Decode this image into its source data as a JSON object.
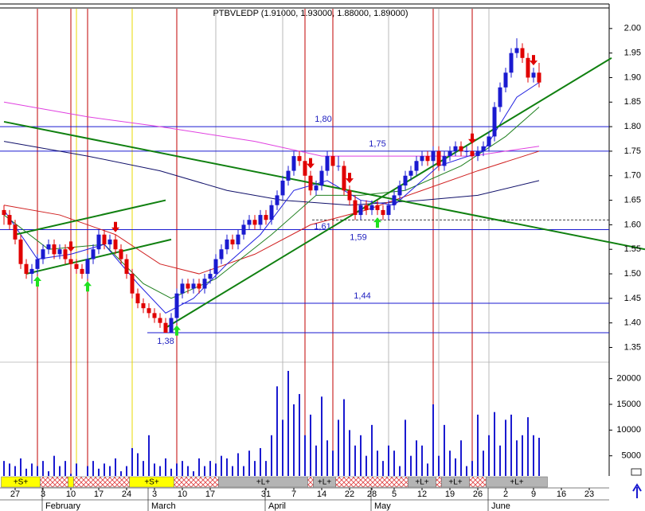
{
  "chart_data": {
    "type": "candlestick",
    "title": "PTBVLEDP (1.91000, 1.93000, 1.88000, 1.89000)",
    "up_color": "#1a1ad0",
    "down_color": "#e00000",
    "categories": [
      null,
      null,
      "27",
      null,
      null,
      null,
      null,
      "3",
      null,
      null,
      null,
      null,
      "10",
      null,
      null,
      null,
      null,
      "17",
      null,
      null,
      null,
      null,
      "24",
      null,
      null,
      null,
      null,
      "3",
      null,
      null,
      null,
      null,
      "10",
      null,
      null,
      null,
      null,
      "17",
      null,
      null,
      null,
      null,
      null,
      null,
      null,
      null,
      null,
      "31",
      null,
      null,
      null,
      null,
      "7",
      null,
      null,
      null,
      null,
      "14",
      null,
      null,
      null,
      null,
      "22",
      null,
      null,
      null,
      "28",
      null,
      null,
      null,
      "5",
      null,
      null,
      null,
      null,
      "12",
      null,
      null,
      null,
      null,
      "19",
      null,
      null,
      null,
      null,
      "26",
      null,
      null,
      null,
      null,
      "2",
      null,
      null,
      null,
      null,
      "9",
      null,
      null,
      null,
      null,
      "16",
      null,
      null,
      null,
      null,
      "23",
      null
    ],
    "months": [
      {
        "label": "February",
        "index": 10
      },
      {
        "label": "March",
        "index": 29
      },
      {
        "label": "April",
        "index": 50
      },
      {
        "label": "May",
        "index": 69
      },
      {
        "label": "June",
        "index": 90
      }
    ],
    "ohlc": [
      [
        1.63,
        1.64,
        1.6,
        1.62
      ],
      [
        1.62,
        1.63,
        1.59,
        1.6
      ],
      [
        1.6,
        1.61,
        1.56,
        1.57
      ],
      [
        1.57,
        1.58,
        1.51,
        1.52
      ],
      [
        1.52,
        1.53,
        1.49,
        1.5
      ],
      [
        1.5,
        1.52,
        1.48,
        1.51
      ],
      [
        1.51,
        1.54,
        1.5,
        1.53
      ],
      [
        1.53,
        1.56,
        1.52,
        1.55
      ],
      [
        1.55,
        1.57,
        1.54,
        1.56
      ],
      [
        1.56,
        1.57,
        1.53,
        1.54
      ],
      [
        1.54,
        1.56,
        1.53,
        1.55
      ],
      [
        1.55,
        1.56,
        1.52,
        1.53
      ],
      [
        1.53,
        1.54,
        1.51,
        1.52
      ],
      [
        1.52,
        1.53,
        1.5,
        1.51
      ],
      [
        1.51,
        1.52,
        1.49,
        1.5
      ],
      [
        1.5,
        1.54,
        1.49,
        1.53
      ],
      [
        1.53,
        1.56,
        1.52,
        1.55
      ],
      [
        1.55,
        1.59,
        1.54,
        1.58
      ],
      [
        1.58,
        1.59,
        1.55,
        1.56
      ],
      [
        1.56,
        1.58,
        1.55,
        1.57
      ],
      [
        1.57,
        1.58,
        1.54,
        1.55
      ],
      [
        1.55,
        1.56,
        1.52,
        1.53
      ],
      [
        1.53,
        1.54,
        1.49,
        1.5
      ],
      [
        1.5,
        1.51,
        1.45,
        1.46
      ],
      [
        1.46,
        1.47,
        1.43,
        1.44
      ],
      [
        1.44,
        1.45,
        1.42,
        1.43
      ],
      [
        1.43,
        1.44,
        1.41,
        1.42
      ],
      [
        1.42,
        1.43,
        1.4,
        1.41
      ],
      [
        1.41,
        1.42,
        1.39,
        1.4
      ],
      [
        1.4,
        1.41,
        1.38,
        1.38
      ],
      [
        1.38,
        1.42,
        1.38,
        1.41
      ],
      [
        1.41,
        1.47,
        1.4,
        1.46
      ],
      [
        1.46,
        1.49,
        1.45,
        1.48
      ],
      [
        1.48,
        1.49,
        1.46,
        1.47
      ],
      [
        1.47,
        1.49,
        1.46,
        1.48
      ],
      [
        1.48,
        1.49,
        1.46,
        1.47
      ],
      [
        1.47,
        1.5,
        1.46,
        1.49
      ],
      [
        1.49,
        1.51,
        1.48,
        1.5
      ],
      [
        1.5,
        1.54,
        1.49,
        1.53
      ],
      [
        1.53,
        1.56,
        1.52,
        1.55
      ],
      [
        1.55,
        1.58,
        1.54,
        1.57
      ],
      [
        1.57,
        1.58,
        1.55,
        1.56
      ],
      [
        1.56,
        1.59,
        1.55,
        1.58
      ],
      [
        1.58,
        1.61,
        1.57,
        1.6
      ],
      [
        1.6,
        1.62,
        1.59,
        1.61
      ],
      [
        1.61,
        1.62,
        1.59,
        1.6
      ],
      [
        1.6,
        1.63,
        1.59,
        1.62
      ],
      [
        1.62,
        1.63,
        1.6,
        1.61
      ],
      [
        1.61,
        1.65,
        1.6,
        1.64
      ],
      [
        1.64,
        1.67,
        1.63,
        1.66
      ],
      [
        1.66,
        1.7,
        1.65,
        1.69
      ],
      [
        1.69,
        1.72,
        1.68,
        1.71
      ],
      [
        1.71,
        1.75,
        1.7,
        1.74
      ],
      [
        1.74,
        1.75,
        1.72,
        1.73
      ],
      [
        1.73,
        1.74,
        1.69,
        1.7
      ],
      [
        1.7,
        1.71,
        1.66,
        1.67
      ],
      [
        1.67,
        1.69,
        1.66,
        1.68
      ],
      [
        1.68,
        1.72,
        1.67,
        1.71
      ],
      [
        1.71,
        1.75,
        1.7,
        1.74
      ],
      [
        1.74,
        1.75,
        1.71,
        1.72
      ],
      [
        1.72,
        1.74,
        1.71,
        1.72
      ],
      [
        1.72,
        1.73,
        1.66,
        1.67
      ],
      [
        1.67,
        1.68,
        1.64,
        1.65
      ],
      [
        1.65,
        1.66,
        1.61,
        1.62
      ],
      [
        1.62,
        1.65,
        1.61,
        1.64
      ],
      [
        1.64,
        1.65,
        1.62,
        1.63
      ],
      [
        1.63,
        1.65,
        1.62,
        1.64
      ],
      [
        1.64,
        1.65,
        1.62,
        1.63
      ],
      [
        1.63,
        1.64,
        1.61,
        1.62
      ],
      [
        1.62,
        1.65,
        1.61,
        1.64
      ],
      [
        1.64,
        1.67,
        1.63,
        1.66
      ],
      [
        1.66,
        1.69,
        1.65,
        1.68
      ],
      [
        1.68,
        1.71,
        1.67,
        1.7
      ],
      [
        1.7,
        1.72,
        1.69,
        1.71
      ],
      [
        1.71,
        1.74,
        1.7,
        1.73
      ],
      [
        1.73,
        1.75,
        1.72,
        1.74
      ],
      [
        1.74,
        1.75,
        1.72,
        1.73
      ],
      [
        1.73,
        1.76,
        1.72,
        1.75
      ],
      [
        1.75,
        1.76,
        1.71,
        1.72
      ],
      [
        1.72,
        1.75,
        1.71,
        1.74
      ],
      [
        1.74,
        1.76,
        1.73,
        1.75
      ],
      [
        1.75,
        1.77,
        1.74,
        1.76
      ],
      [
        1.76,
        1.77,
        1.74,
        1.75
      ],
      [
        1.75,
        1.76,
        1.74,
        1.75
      ],
      [
        1.75,
        1.76,
        1.73,
        1.74
      ],
      [
        1.74,
        1.76,
        1.73,
        1.75
      ],
      [
        1.75,
        1.77,
        1.74,
        1.76
      ],
      [
        1.76,
        1.79,
        1.75,
        1.78
      ],
      [
        1.78,
        1.85,
        1.77,
        1.84
      ],
      [
        1.84,
        1.89,
        1.83,
        1.88
      ],
      [
        1.88,
        1.92,
        1.87,
        1.91
      ],
      [
        1.91,
        1.96,
        1.9,
        1.95
      ],
      [
        1.95,
        1.98,
        1.94,
        1.96
      ],
      [
        1.96,
        1.97,
        1.93,
        1.94
      ],
      [
        1.94,
        1.95,
        1.89,
        1.9
      ],
      [
        1.9,
        1.92,
        1.89,
        1.91
      ],
      [
        1.91,
        1.93,
        1.88,
        1.89
      ],
      null,
      null,
      null,
      null,
      null,
      null,
      null,
      null,
      null,
      null
    ],
    "volume": [
      4000,
      3500,
      3000,
      4500,
      2500,
      3500,
      3000,
      4000,
      2000,
      5000,
      3000,
      4000,
      1500,
      3500,
      1000,
      3000,
      4000,
      2500,
      3500,
      3000,
      4500,
      2000,
      3000,
      6500,
      5500,
      4000,
      9000,
      3500,
      3000,
      4500,
      2500,
      3500,
      4000,
      3000,
      2000,
      4500,
      3000,
      4000,
      3500,
      5000,
      4500,
      3000,
      5500,
      3000,
      6000,
      4000,
      6500,
      4000,
      9000,
      18500,
      12000,
      21500,
      15000,
      17000,
      9000,
      13000,
      7000,
      16500,
      8000,
      6000,
      12000,
      16000,
      10000,
      7000,
      9000,
      5000,
      11000,
      6000,
      4000,
      7000,
      6000,
      3000,
      12000,
      5000,
      8000,
      7000,
      3500,
      15000,
      5000,
      11000,
      6000,
      4500,
      8000,
      3000,
      4000,
      13000,
      6000,
      9000,
      13500,
      7000,
      12000,
      13000,
      8000,
      9000,
      12500,
      9000,
      8500,
      null,
      null,
      null,
      null,
      null,
      null,
      null,
      null,
      null,
      null
    ],
    "volume_color": "#1a1ad0",
    "ylim": [
      1.32,
      2.05
    ],
    "yticks": [
      {
        "value": 1.35,
        "label": "1.35"
      },
      {
        "value": 1.4,
        "label": "1.40"
      },
      {
        "value": 1.45,
        "label": "1.45"
      },
      {
        "value": 1.5,
        "label": "1.50"
      },
      {
        "value": 1.55,
        "label": "1.55"
      },
      {
        "value": 1.6,
        "label": "1.60"
      },
      {
        "value": 1.65,
        "label": "1.65"
      },
      {
        "value": 1.7,
        "label": "1.70"
      },
      {
        "value": 1.75,
        "label": "1.75"
      },
      {
        "value": 1.8,
        "label": "1.80"
      },
      {
        "value": 1.85,
        "label": "1.85"
      },
      {
        "value": 1.9,
        "label": "1.90"
      },
      {
        "value": 1.95,
        "label": "1.95"
      },
      {
        "value": 2.0,
        "label": "2.00"
      }
    ],
    "vol_ylim": [
      0,
      23000
    ],
    "vol_yticks": [
      5000,
      10000,
      15000,
      20000
    ],
    "levels": [
      {
        "value": 1.8,
        "label": "1,80"
      },
      {
        "value": 1.75,
        "label": "1,75"
      },
      {
        "value": 1.61,
        "label": "1,61",
        "dashed": true
      },
      {
        "value": 1.59,
        "label": "1,59"
      },
      {
        "value": 1.44,
        "label": "1,44"
      },
      {
        "value": 1.38,
        "label": "1,38"
      }
    ],
    "level_color": "#1a1ad0",
    "trendlines": [
      {
        "x": [
          0,
          115
        ],
        "y": [
          1.81,
          1.55
        ]
      },
      {
        "x": [
          29,
          109
        ],
        "y": [
          1.39,
          1.94
        ]
      },
      {
        "x": [
          2,
          29
        ],
        "y": [
          1.58,
          1.65
        ]
      },
      {
        "x": [
          4,
          30
        ],
        "y": [
          1.5,
          1.57
        ]
      }
    ],
    "trend_color": "#108010",
    "moving_averages": [
      {
        "color": "#e040e0",
        "x": [
          0,
          15,
          28,
          45,
          57,
          70,
          84,
          96
        ],
        "values": [
          1.85,
          1.82,
          1.8,
          1.77,
          1.74,
          1.74,
          1.74,
          1.76
        ]
      },
      {
        "color": "#10106a",
        "x": [
          0,
          15,
          28,
          40,
          50,
          62,
          75,
          85,
          96
        ],
        "values": [
          1.77,
          1.74,
          1.71,
          1.67,
          1.65,
          1.64,
          1.65,
          1.66,
          1.69
        ]
      },
      {
        "color": "#d02020",
        "x": [
          0,
          10,
          20,
          28,
          35,
          45,
          55,
          65,
          75,
          85,
          96
        ],
        "values": [
          1.64,
          1.62,
          1.58,
          1.52,
          1.5,
          1.54,
          1.6,
          1.63,
          1.67,
          1.71,
          1.75
        ]
      },
      {
        "color": "#208020",
        "x": [
          0,
          8,
          18,
          25,
          30,
          38,
          48,
          56,
          64,
          72,
          82,
          90,
          96
        ],
        "values": [
          1.62,
          1.55,
          1.56,
          1.48,
          1.45,
          1.49,
          1.58,
          1.66,
          1.66,
          1.67,
          1.72,
          1.78,
          1.84
        ]
      },
      {
        "color": "#2020e0",
        "x": [
          0,
          6,
          12,
          18,
          24,
          29,
          34,
          40,
          46,
          52,
          58,
          64,
          70,
          78,
          86,
          92,
          96
        ],
        "values": [
          1.63,
          1.53,
          1.54,
          1.56,
          1.48,
          1.42,
          1.45,
          1.52,
          1.58,
          1.67,
          1.69,
          1.65,
          1.64,
          1.72,
          1.75,
          1.86,
          1.89
        ]
      }
    ],
    "event_lines": [
      {
        "color": "#c00000",
        "x": [
          6,
          12,
          15,
          31,
          54,
          59,
          77,
          84
        ]
      },
      {
        "color": "#e8d800",
        "x": [
          13,
          23
        ]
      },
      {
        "color": "#b8b8b8",
        "x": [
          38,
          50,
          69,
          78,
          87
        ]
      }
    ],
    "sell_signals": [
      12,
      20,
      55,
      62,
      84,
      95
    ],
    "buy_signals": [
      6,
      15,
      31,
      67
    ],
    "signal_bar": [
      {
        "label": "+S+",
        "kind": "short",
        "from": 0,
        "to": 6
      },
      {
        "kind": "hatch",
        "from": 7,
        "to": 11
      },
      {
        "kind": "short",
        "from": 12,
        "to": 12
      },
      {
        "kind": "hatch",
        "from": 13,
        "to": 22
      },
      {
        "label": "+S+",
        "kind": "short",
        "from": 23,
        "to": 30
      },
      {
        "kind": "hatch",
        "from": 31,
        "to": 38
      },
      {
        "label": "+L+",
        "kind": "long",
        "from": 39,
        "to": 54
      },
      {
        "kind": "hatch",
        "from": 55,
        "to": 55
      },
      {
        "label": "+L+",
        "kind": "long",
        "from": 56,
        "to": 59
      },
      {
        "kind": "hatch",
        "from": 60,
        "to": 72
      },
      {
        "label": "+L+",
        "kind": "long",
        "from": 73,
        "to": 77
      },
      {
        "kind": "hatch",
        "from": 78,
        "to": 78
      },
      {
        "label": "+L+",
        "kind": "long",
        "from": 79,
        "to": 83
      },
      {
        "kind": "hatch",
        "from": 84,
        "to": 86
      },
      {
        "label": "+L+",
        "kind": "long",
        "from": 87,
        "to": 97
      }
    ]
  }
}
